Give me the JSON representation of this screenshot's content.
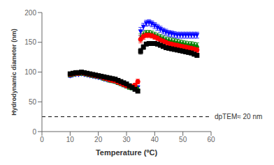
{
  "chart_data": {
    "type": "scatter",
    "xlabel": "Temperature (ºC)",
    "ylabel": "Hydrodynamic diameter (nm)",
    "xlim": [
      0,
      60
    ],
    "ylim": [
      0,
      200
    ],
    "xticks": [
      0,
      10,
      20,
      30,
      40,
      50,
      60
    ],
    "yticks": [
      0,
      50,
      100,
      150,
      200
    ],
    "grid": false,
    "annotations": [
      {
        "text": "dpTEM≈ 20 nm",
        "y": 25,
        "line_style": "dashed"
      }
    ],
    "series": [
      {
        "color": "blue",
        "marker": "triangle-down",
        "x": [
          10,
          11,
          12,
          13,
          14,
          15,
          16,
          17,
          18,
          19,
          20,
          21,
          22,
          23,
          24,
          25,
          26,
          27,
          28,
          29,
          30,
          31,
          32,
          33,
          34,
          35,
          36,
          37,
          38,
          39,
          40,
          41,
          42,
          43,
          44,
          45,
          46,
          47,
          48,
          49,
          50,
          51,
          52,
          53,
          54,
          55
        ],
        "values": [
          94,
          95,
          96,
          96,
          97,
          96,
          95,
          94,
          93,
          92,
          91,
          90,
          88,
          87,
          86,
          85,
          84,
          82,
          80,
          78,
          76,
          75,
          74,
          74,
          74,
          168,
          176,
          182,
          183,
          181,
          178,
          175,
          172,
          169,
          167,
          165,
          164,
          163,
          162,
          162,
          162,
          162,
          162,
          162,
          162,
          162
        ],
        "errors": [
          3,
          2,
          2,
          2,
          2,
          2,
          2,
          2,
          2,
          2,
          2,
          2,
          2,
          2,
          2,
          2,
          2,
          2,
          2,
          2,
          2,
          2,
          2,
          2,
          3,
          7,
          6,
          5,
          5,
          5,
          5,
          5,
          5,
          5,
          5,
          5,
          5,
          5,
          5,
          5,
          5,
          5,
          5,
          5,
          5,
          5
        ]
      },
      {
        "color": "green",
        "marker": "triangle-up",
        "x": [
          10,
          11,
          12,
          13,
          14,
          15,
          16,
          17,
          18,
          19,
          20,
          21,
          22,
          23,
          24,
          25,
          26,
          27,
          28,
          29,
          30,
          31,
          32,
          33,
          34,
          35,
          36,
          37,
          38,
          39,
          40,
          41,
          42,
          43,
          44,
          45,
          46,
          47,
          48,
          49,
          50,
          51,
          52,
          53,
          54,
          55
        ],
        "values": [
          95,
          96,
          97,
          97,
          98,
          97,
          96,
          95,
          94,
          93,
          92,
          91,
          89,
          88,
          86,
          85,
          84,
          82,
          80,
          78,
          76,
          74,
          73,
          73,
          73,
          158,
          163,
          166,
          166,
          165,
          163,
          161,
          159,
          157,
          155,
          154,
          153,
          152,
          151,
          150,
          149,
          148,
          147,
          147,
          146,
          145
        ],
        "errors": [
          3,
          2,
          2,
          2,
          2,
          2,
          2,
          2,
          2,
          2,
          2,
          2,
          2,
          2,
          2,
          2,
          2,
          2,
          2,
          2,
          2,
          2,
          2,
          2,
          3,
          6,
          5,
          4,
          4,
          4,
          4,
          4,
          4,
          4,
          4,
          4,
          4,
          4,
          4,
          4,
          4,
          4,
          4,
          4,
          4,
          4
        ]
      },
      {
        "color": "red",
        "marker": "circle",
        "x": [
          10,
          11,
          12,
          13,
          14,
          15,
          16,
          17,
          18,
          19,
          20,
          21,
          22,
          23,
          24,
          25,
          26,
          27,
          28,
          29,
          30,
          31,
          32,
          33,
          34,
          35,
          36,
          37,
          38,
          39,
          40,
          41,
          42,
          43,
          44,
          45,
          46,
          47,
          48,
          49,
          50,
          51,
          52,
          53,
          54,
          55
        ],
        "values": [
          96,
          97,
          98,
          98,
          99,
          98,
          97,
          96,
          95,
          94,
          93,
          92,
          90,
          89,
          87,
          86,
          85,
          83,
          81,
          79,
          77,
          76,
          76,
          78,
          84,
          155,
          160,
          162,
          162,
          161,
          159,
          157,
          154,
          152,
          150,
          148,
          147,
          146,
          145,
          144,
          143,
          142,
          141,
          140,
          139,
          137
        ],
        "errors": [
          3,
          2,
          2,
          2,
          2,
          2,
          2,
          2,
          2,
          2,
          2,
          2,
          2,
          2,
          2,
          2,
          2,
          2,
          2,
          2,
          2,
          2,
          2,
          3,
          4,
          6,
          5,
          4,
          4,
          4,
          4,
          4,
          4,
          4,
          4,
          4,
          4,
          4,
          4,
          4,
          4,
          4,
          4,
          4,
          4,
          4
        ]
      },
      {
        "color": "black",
        "marker": "square",
        "x": [
          10,
          11,
          12,
          13,
          14,
          15,
          16,
          17,
          18,
          19,
          20,
          21,
          22,
          23,
          24,
          25,
          26,
          27,
          28,
          29,
          30,
          31,
          32,
          33,
          34,
          35,
          36,
          37,
          38,
          39,
          40,
          41,
          42,
          43,
          44,
          45,
          46,
          47,
          48,
          49,
          50,
          51,
          52,
          53,
          54,
          55
        ],
        "values": [
          97,
          98,
          99,
          99,
          100,
          99,
          98,
          97,
          96,
          95,
          94,
          93,
          92,
          91,
          90,
          89,
          88,
          86,
          84,
          82,
          80,
          77,
          74,
          71,
          68,
          135,
          142,
          147,
          148,
          148,
          148,
          147,
          145,
          143,
          141,
          140,
          139,
          138,
          137,
          136,
          135,
          134,
          133,
          132,
          130,
          128
        ],
        "errors": [
          2,
          2,
          2,
          2,
          2,
          2,
          2,
          2,
          2,
          2,
          2,
          2,
          2,
          2,
          2,
          2,
          2,
          2,
          2,
          2,
          2,
          2,
          2,
          2,
          3,
          5,
          4,
          3,
          3,
          3,
          3,
          3,
          3,
          3,
          3,
          3,
          3,
          3,
          3,
          3,
          3,
          3,
          3,
          3,
          3,
          3
        ]
      }
    ]
  }
}
